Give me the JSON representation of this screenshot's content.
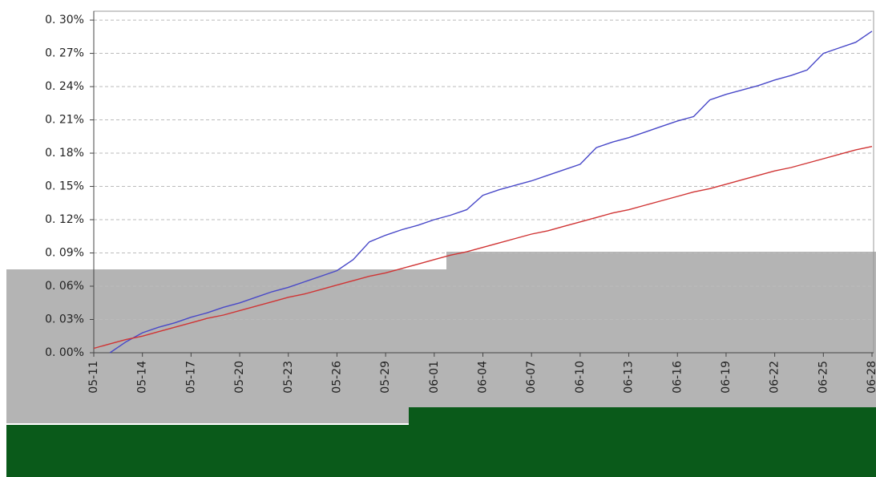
{
  "chart_data": {
    "type": "line",
    "categories": [
      "05-11",
      null,
      null,
      "05-14",
      null,
      null,
      "05-17",
      null,
      null,
      "05-20",
      null,
      null,
      "05-23",
      null,
      null,
      "05-26",
      null,
      null,
      "05-29",
      null,
      null,
      "06-01",
      null,
      null,
      "06-04",
      null,
      null,
      "06-07",
      null,
      null,
      "06-10",
      null,
      null,
      "06-13",
      null,
      null,
      "06-16",
      null,
      null,
      "06-19",
      null,
      null,
      "06-22",
      null,
      null,
      "06-25",
      null,
      null,
      "06-28"
    ],
    "series": [
      {
        "color": "#4848c8",
        "values": [
          null,
          0.0,
          0.01,
          0.018,
          0.023,
          0.027,
          0.032,
          0.036,
          0.041,
          0.045,
          0.05,
          0.055,
          0.059,
          0.064,
          0.069,
          0.074,
          0.084,
          0.1,
          0.106,
          0.111,
          0.115,
          0.12,
          0.124,
          0.129,
          0.142,
          0.147,
          0.151,
          0.155,
          0.16,
          0.165,
          0.17,
          0.185,
          0.19,
          0.194,
          0.199,
          0.204,
          0.209,
          0.213,
          0.228,
          0.233,
          0.237,
          0.241,
          0.246,
          0.25,
          0.255,
          0.27,
          0.275,
          0.28,
          0.29
        ]
      },
      {
        "color": "#d03434",
        "values": [
          0.004,
          0.008,
          0.012,
          0.015,
          0.019,
          0.023,
          0.027,
          0.031,
          0.034,
          0.038,
          0.042,
          0.046,
          0.05,
          0.053,
          0.057,
          0.061,
          0.065,
          0.069,
          0.072,
          0.076,
          0.08,
          0.084,
          0.088,
          0.091,
          0.095,
          0.099,
          0.103,
          0.107,
          0.11,
          0.114,
          0.118,
          0.122,
          0.126,
          0.129,
          0.133,
          0.137,
          0.141,
          0.145,
          0.148,
          0.152,
          0.156,
          0.16,
          0.164,
          0.167,
          0.171,
          0.175,
          0.179,
          0.183,
          0.186
        ]
      }
    ],
    "ylim": [
      0,
      0.308
    ],
    "yticks": [
      {
        "value": 0,
        "label": "0. 00%"
      },
      {
        "value": 0.03,
        "label": "0. 03%"
      },
      {
        "value": 0.06,
        "label": "0. 06%"
      },
      {
        "value": 0.09,
        "label": "0. 09%"
      },
      {
        "value": 0.12,
        "label": "0. 12%"
      },
      {
        "value": 0.15,
        "label": "0. 15%"
      },
      {
        "value": 0.18,
        "label": "0. 18%"
      },
      {
        "value": 0.21,
        "label": "0. 21%"
      },
      {
        "value": 0.24,
        "label": "0. 24%"
      },
      {
        "value": 0.27,
        "label": "0. 27%"
      },
      {
        "value": 0.3,
        "label": "0. 30%"
      }
    ],
    "grid": true
  }
}
